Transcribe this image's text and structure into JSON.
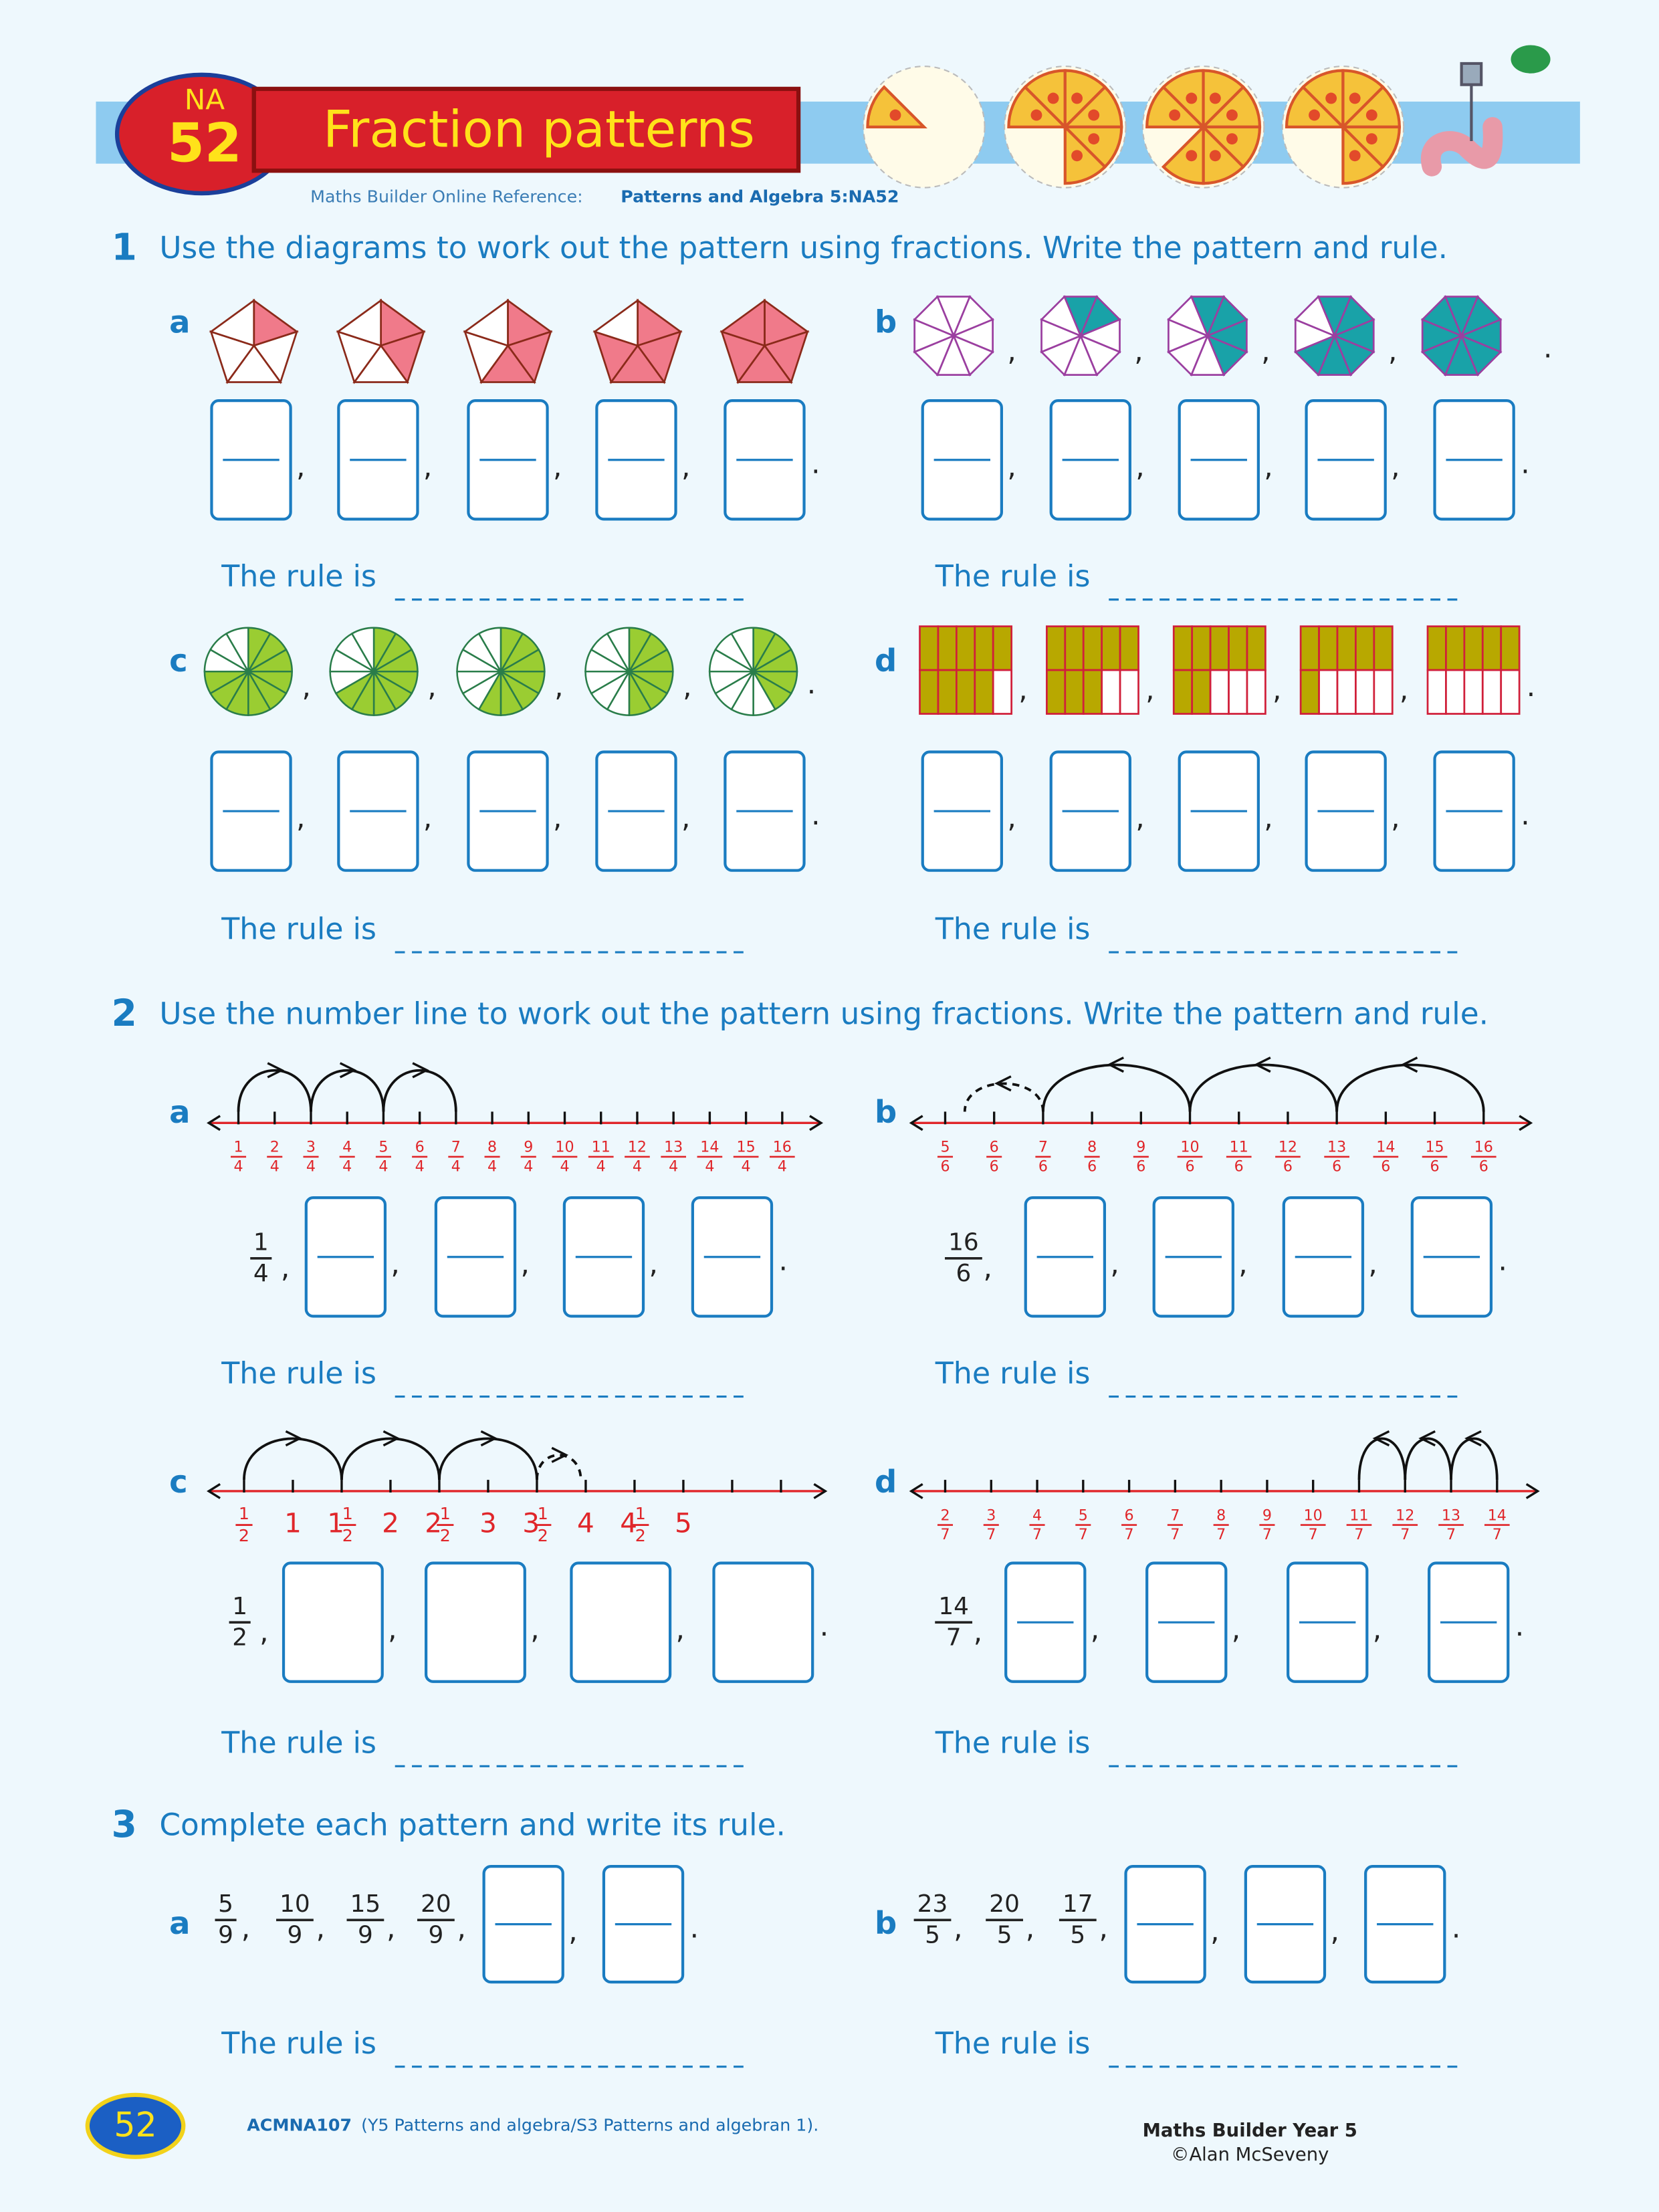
{
  "header": {
    "code": "NA",
    "number": "52",
    "title": "Fraction patterns",
    "reference_prefix": "Maths Builder Online Reference:",
    "reference": "Patterns and Algebra 5:NA52"
  },
  "rule_label": "The rule is",
  "punctuation": {
    "comma": ",",
    "period": "."
  },
  "q1": {
    "number": "1",
    "instruction": "Use the diagrams to work out the pattern using fractions. Write the pattern and rule.",
    "parts": [
      {
        "letter": "a"
      },
      {
        "letter": "b"
      },
      {
        "letter": "c"
      },
      {
        "letter": "d"
      }
    ]
  },
  "q2": {
    "number": "2",
    "instruction": "Use the number line to work out the pattern using fractions. Write the pattern and rule.",
    "parts": [
      {
        "letter": "a",
        "given": {
          "num": "1",
          "den": "4"
        },
        "labels": [
          {
            "num": "1",
            "den": "4"
          },
          {
            "num": "2",
            "den": "4"
          },
          {
            "num": "3",
            "den": "4"
          },
          {
            "num": "4",
            "den": "4"
          },
          {
            "num": "5",
            "den": "4"
          },
          {
            "num": "6",
            "den": "4"
          },
          {
            "num": "7",
            "den": "4"
          },
          {
            "num": "8",
            "den": "4"
          },
          {
            "num": "9",
            "den": "4"
          },
          {
            "num": "10",
            "den": "4"
          },
          {
            "num": "11",
            "den": "4"
          },
          {
            "num": "12",
            "den": "4"
          },
          {
            "num": "13",
            "den": "4"
          },
          {
            "num": "14",
            "den": "4"
          },
          {
            "num": "15",
            "den": "4"
          },
          {
            "num": "16",
            "den": "4"
          }
        ]
      },
      {
        "letter": "b",
        "given": {
          "num": "16",
          "den": "6"
        },
        "labels": [
          {
            "num": "5",
            "den": "6"
          },
          {
            "num": "6",
            "den": "6"
          },
          {
            "num": "7",
            "den": "6"
          },
          {
            "num": "8",
            "den": "6"
          },
          {
            "num": "9",
            "den": "6"
          },
          {
            "num": "10",
            "den": "6"
          },
          {
            "num": "11",
            "den": "6"
          },
          {
            "num": "12",
            "den": "6"
          },
          {
            "num": "13",
            "den": "6"
          },
          {
            "num": "14",
            "den": "6"
          },
          {
            "num": "15",
            "den": "6"
          },
          {
            "num": "16",
            "den": "6"
          }
        ]
      },
      {
        "letter": "c",
        "given": {
          "num": "1",
          "den": "2"
        },
        "labels": [
          {
            "num": "1",
            "den": "2"
          },
          {
            "whole": "1"
          },
          {
            "whole": "1",
            "num": "1",
            "den": "2"
          },
          {
            "whole": "2"
          },
          {
            "whole": "2",
            "num": "1",
            "den": "2"
          },
          {
            "whole": "3"
          },
          {
            "whole": "3",
            "num": "1",
            "den": "2"
          },
          {
            "whole": "4"
          },
          {
            "whole": "4",
            "num": "1",
            "den": "2"
          },
          {
            "whole": "5"
          }
        ]
      },
      {
        "letter": "d",
        "given": {
          "num": "14",
          "den": "7"
        },
        "labels": [
          {
            "num": "2",
            "den": "7"
          },
          {
            "num": "3",
            "den": "7"
          },
          {
            "num": "4",
            "den": "7"
          },
          {
            "num": "5",
            "den": "7"
          },
          {
            "num": "6",
            "den": "7"
          },
          {
            "num": "7",
            "den": "7"
          },
          {
            "num": "8",
            "den": "7"
          },
          {
            "num": "9",
            "den": "7"
          },
          {
            "num": "10",
            "den": "7"
          },
          {
            "num": "11",
            "den": "7"
          },
          {
            "num": "12",
            "den": "7"
          },
          {
            "num": "13",
            "den": "7"
          },
          {
            "num": "14",
            "den": "7"
          }
        ]
      }
    ]
  },
  "q3": {
    "number": "3",
    "instruction": "Complete each pattern and write its rule.",
    "parts": [
      {
        "letter": "a",
        "given": [
          {
            "num": "5",
            "den": "9"
          },
          {
            "num": "10",
            "den": "9"
          },
          {
            "num": "15",
            "den": "9"
          },
          {
            "num": "20",
            "den": "9"
          }
        ]
      },
      {
        "letter": "b",
        "given": [
          {
            "num": "23",
            "den": "5"
          },
          {
            "num": "20",
            "den": "5"
          },
          {
            "num": "17",
            "den": "5"
          }
        ]
      }
    ]
  },
  "footer": {
    "page": "52",
    "code": "ACMNA107",
    "text": "(Y5 Patterns and algebra/S3 Patterns and algebran 1).",
    "book": "Maths Builder Year 5",
    "copyright": "©Alan McSeveny"
  }
}
